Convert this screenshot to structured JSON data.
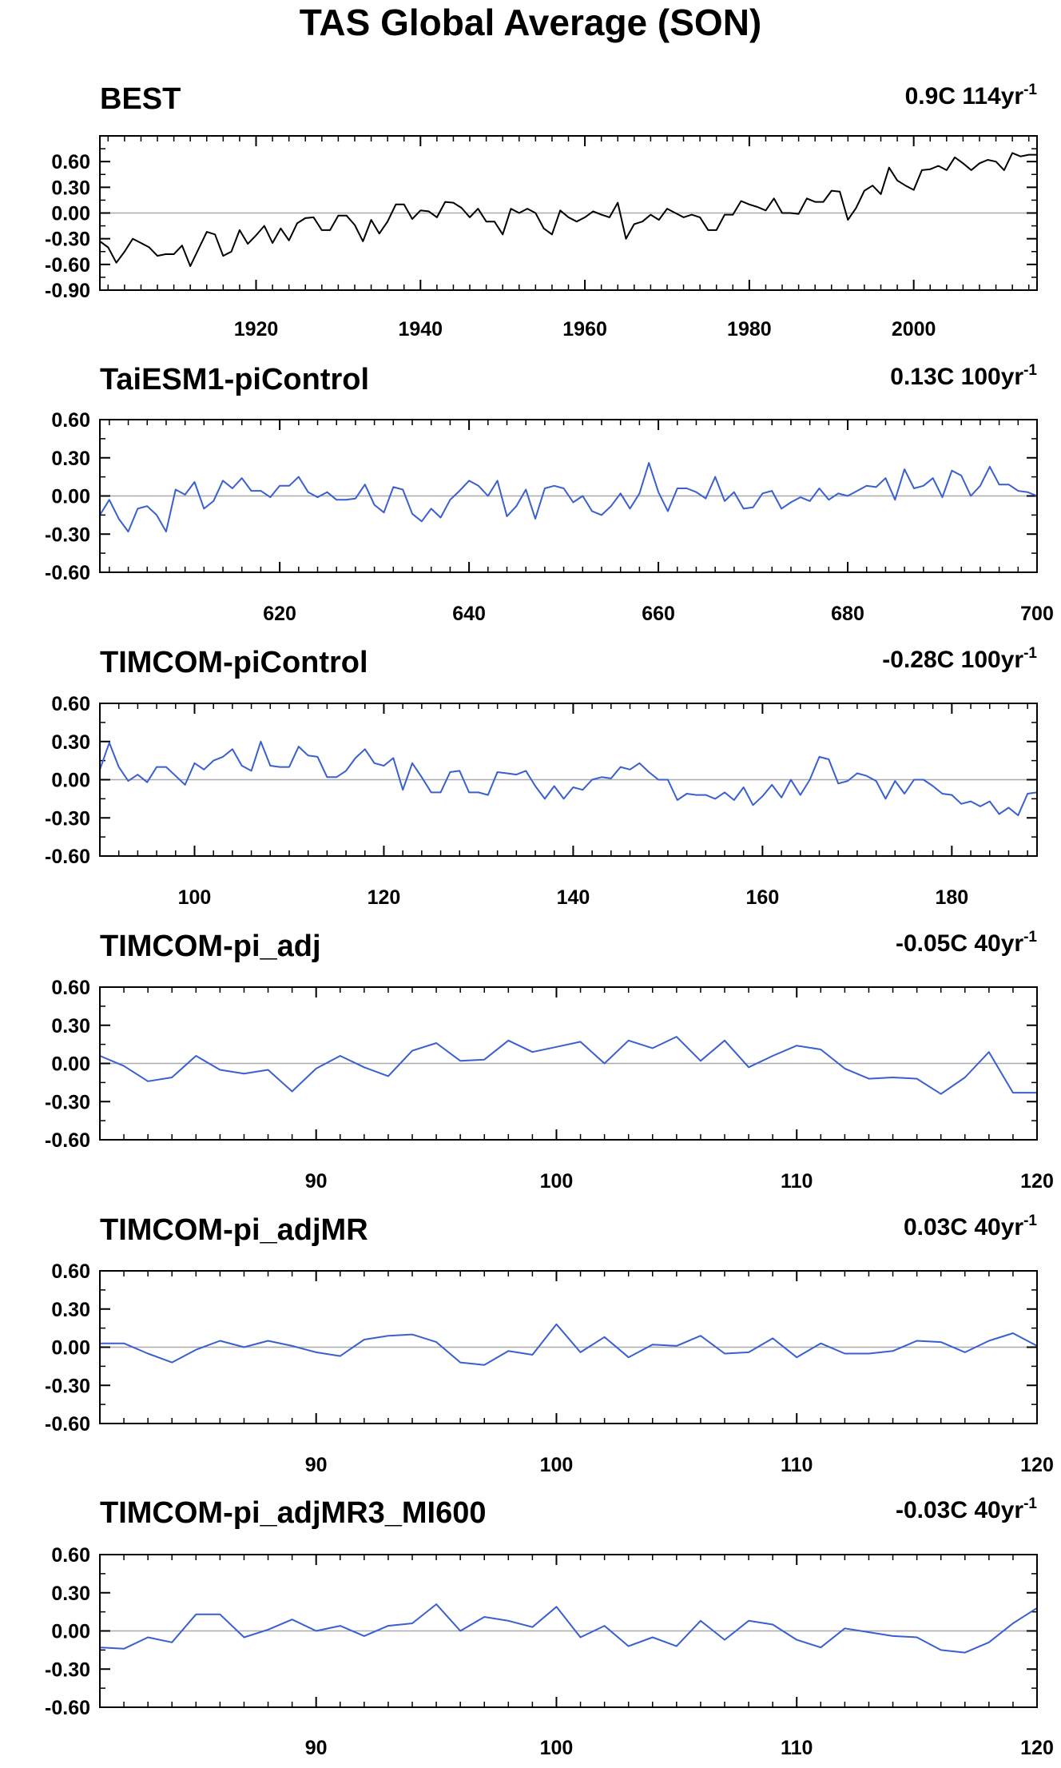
{
  "title": "TAS Global Average (SON)",
  "colors": {
    "obs": "#000000",
    "model": "#3a5fd0",
    "zero": "#aaaaaa",
    "frame": "#000000"
  },
  "chart_data": [
    {
      "type": "line",
      "title": "BEST",
      "trend_value": "0.9C 114yr",
      "trend_exponent": "-1",
      "color": "#000000",
      "xlim": [
        1901,
        2015
      ],
      "ylim": [
        -0.9,
        0.9
      ],
      "yticks": [
        "0.60",
        "0.30",
        "0.00",
        "-0.30",
        "-0.60",
        "-0.90"
      ],
      "xticks": [
        "1920",
        "1940",
        "1960",
        "1980",
        "2000"
      ],
      "x": [
        1901,
        1902,
        1903,
        1904,
        1905,
        1906,
        1907,
        1908,
        1909,
        1910,
        1911,
        1912,
        1913,
        1914,
        1915,
        1916,
        1917,
        1918,
        1919,
        1920,
        1921,
        1922,
        1923,
        1924,
        1925,
        1926,
        1927,
        1928,
        1929,
        1930,
        1931,
        1932,
        1933,
        1934,
        1935,
        1936,
        1937,
        1938,
        1939,
        1940,
        1941,
        1942,
        1943,
        1944,
        1945,
        1946,
        1947,
        1948,
        1949,
        1950,
        1951,
        1952,
        1953,
        1954,
        1955,
        1956,
        1957,
        1958,
        1959,
        1960,
        1961,
        1962,
        1963,
        1964,
        1965,
        1966,
        1967,
        1968,
        1969,
        1970,
        1971,
        1972,
        1973,
        1974,
        1975,
        1976,
        1977,
        1978,
        1979,
        1980,
        1981,
        1982,
        1983,
        1984,
        1985,
        1986,
        1987,
        1988,
        1989,
        1990,
        1991,
        1992,
        1993,
        1994,
        1995,
        1996,
        1997,
        1998,
        1999,
        2000,
        2001,
        2002,
        2003,
        2004,
        2005,
        2006,
        2007,
        2008,
        2009,
        2010,
        2011,
        2012,
        2013,
        2014,
        2015
      ],
      "values": [
        -0.33,
        -0.4,
        -0.58,
        -0.45,
        -0.3,
        -0.35,
        -0.4,
        -0.5,
        -0.48,
        -0.48,
        -0.38,
        -0.62,
        -0.42,
        -0.22,
        -0.25,
        -0.5,
        -0.45,
        -0.2,
        -0.36,
        -0.26,
        -0.15,
        -0.35,
        -0.18,
        -0.32,
        -0.12,
        -0.06,
        -0.05,
        -0.2,
        -0.2,
        -0.03,
        -0.03,
        -0.14,
        -0.33,
        -0.08,
        -0.24,
        -0.1,
        0.1,
        0.1,
        -0.07,
        0.03,
        0.02,
        -0.05,
        0.13,
        0.12,
        0.06,
        -0.05,
        0.05,
        -0.1,
        -0.1,
        -0.25,
        0.05,
        0.0,
        0.05,
        0.0,
        -0.18,
        -0.25,
        0.03,
        -0.05,
        -0.1,
        -0.05,
        0.02,
        -0.02,
        -0.05,
        0.12,
        -0.3,
        -0.13,
        -0.1,
        -0.02,
        -0.08,
        0.05,
        0.0,
        -0.05,
        -0.02,
        -0.05,
        -0.2,
        -0.2,
        -0.02,
        -0.02,
        0.14,
        0.1,
        0.07,
        0.03,
        0.17,
        0.0,
        0.0,
        -0.01,
        0.17,
        0.13,
        0.13,
        0.26,
        0.25,
        -0.08,
        0.06,
        0.26,
        0.32,
        0.22,
        0.53,
        0.38,
        0.32,
        0.27,
        0.5,
        0.51,
        0.55,
        0.5,
        0.65,
        0.58,
        0.5,
        0.58,
        0.62,
        0.6,
        0.5,
        0.7,
        0.66,
        0.68,
        0.68
      ]
    },
    {
      "type": "line",
      "title": "TaiESM1-piControl",
      "trend_value": "0.13C 100yr",
      "trend_exponent": "-1",
      "color": "#3a5fd0",
      "xlim": [
        601,
        700
      ],
      "ylim": [
        -0.6,
        0.6
      ],
      "yticks": [
        "0.60",
        "0.30",
        "0.00",
        "-0.30",
        "-0.60"
      ],
      "xticks": [
        "620",
        "640",
        "660",
        "680",
        "700"
      ],
      "x_start": 601,
      "values": [
        -0.15,
        -0.03,
        -0.18,
        -0.28,
        -0.1,
        -0.08,
        -0.15,
        -0.28,
        0.05,
        0.01,
        0.11,
        -0.1,
        -0.04,
        0.12,
        0.06,
        0.14,
        0.04,
        0.04,
        -0.01,
        0.08,
        0.08,
        0.15,
        0.03,
        -0.01,
        0.03,
        -0.03,
        -0.03,
        -0.02,
        0.09,
        -0.07,
        -0.13,
        0.07,
        0.05,
        -0.14,
        -0.2,
        -0.1,
        -0.17,
        -0.03,
        0.04,
        0.12,
        0.08,
        0.0,
        0.12,
        -0.16,
        -0.08,
        0.05,
        -0.18,
        0.06,
        0.08,
        0.06,
        -0.05,
        0.0,
        -0.12,
        -0.15,
        -0.08,
        0.02,
        -0.1,
        0.02,
        0.26,
        0.03,
        -0.12,
        0.06,
        0.06,
        0.03,
        -0.02,
        0.15,
        -0.04,
        0.03,
        -0.1,
        -0.09,
        0.02,
        0.04,
        -0.1,
        -0.05,
        -0.01,
        -0.04,
        0.06,
        -0.03,
        0.02,
        0.0,
        0.04,
        0.08,
        0.07,
        0.14,
        -0.03,
        0.21,
        0.06,
        0.08,
        0.14,
        -0.01,
        0.2,
        0.16,
        0.0,
        0.08,
        0.23,
        0.09,
        0.09,
        0.04,
        0.03,
        0.0
      ]
    },
    {
      "type": "line",
      "title": "TIMCOM-piControl",
      "trend_value": "-0.28C 100yr",
      "trend_exponent": "-1",
      "color": "#3a5fd0",
      "xlim": [
        90,
        189
      ],
      "ylim": [
        -0.6,
        0.6
      ],
      "yticks": [
        "0.60",
        "0.30",
        "0.00",
        "-0.30",
        "-0.60"
      ],
      "xticks": [
        "100",
        "120",
        "140",
        "160",
        "180"
      ],
      "x_start": 90,
      "values": [
        0.08,
        0.29,
        0.1,
        -0.01,
        0.04,
        -0.02,
        0.1,
        0.1,
        0.03,
        -0.04,
        0.13,
        0.08,
        0.15,
        0.18,
        0.24,
        0.11,
        0.07,
        0.3,
        0.11,
        0.1,
        0.1,
        0.26,
        0.19,
        0.18,
        0.02,
        0.02,
        0.07,
        0.17,
        0.24,
        0.13,
        0.11,
        0.17,
        -0.08,
        0.13,
        0.02,
        -0.1,
        -0.1,
        0.06,
        0.07,
        -0.1,
        -0.1,
        -0.12,
        0.06,
        0.05,
        0.04,
        0.07,
        -0.05,
        -0.15,
        -0.05,
        -0.15,
        -0.06,
        -0.08,
        0.0,
        0.02,
        0.01,
        0.1,
        0.08,
        0.13,
        0.06,
        0.0,
        0.0,
        -0.16,
        -0.11,
        -0.12,
        -0.12,
        -0.15,
        -0.1,
        -0.16,
        -0.06,
        -0.2,
        -0.13,
        -0.04,
        -0.14,
        0.0,
        -0.12,
        0.0,
        0.18,
        0.16,
        -0.03,
        -0.01,
        0.05,
        0.03,
        -0.01,
        -0.15,
        -0.01,
        -0.11,
        0.0,
        0.0,
        -0.05,
        -0.11,
        -0.12,
        -0.19,
        -0.17,
        -0.21,
        -0.17,
        -0.27,
        -0.22,
        -0.28,
        -0.11,
        -0.1
      ]
    },
    {
      "type": "line",
      "title": "TIMCOM-pi_adj",
      "trend_value": "-0.05C 40yr",
      "trend_exponent": "-1",
      "color": "#3a5fd0",
      "xlim": [
        81,
        120
      ],
      "ylim": [
        -0.6,
        0.6
      ],
      "yticks": [
        "0.60",
        "0.30",
        "0.00",
        "-0.30",
        "-0.60"
      ],
      "xticks": [
        "90",
        "100",
        "110",
        "120"
      ],
      "x_start": 81,
      "values": [
        0.06,
        -0.02,
        -0.14,
        -0.11,
        0.06,
        -0.05,
        -0.08,
        -0.05,
        -0.22,
        -0.04,
        0.06,
        -0.03,
        -0.1,
        0.1,
        0.16,
        0.02,
        0.03,
        0.18,
        0.09,
        0.13,
        0.17,
        0.0,
        0.18,
        0.12,
        0.21,
        0.02,
        0.18,
        -0.03,
        0.06,
        0.14,
        0.11,
        -0.04,
        -0.12,
        -0.11,
        -0.12,
        -0.24,
        -0.11,
        0.09,
        -0.23,
        -0.23
      ]
    },
    {
      "type": "line",
      "title": "TIMCOM-pi_adjMR",
      "trend_value": "0.03C 40yr",
      "trend_exponent": "-1",
      "color": "#3a5fd0",
      "xlim": [
        81,
        120
      ],
      "ylim": [
        -0.6,
        0.6
      ],
      "yticks": [
        "0.60",
        "0.30",
        "0.00",
        "-0.30",
        "-0.60"
      ],
      "xticks": [
        "90",
        "100",
        "110",
        "120"
      ],
      "x_start": 81,
      "values": [
        0.03,
        0.03,
        -0.05,
        -0.12,
        -0.02,
        0.05,
        0.0,
        0.05,
        0.01,
        -0.04,
        -0.07,
        0.06,
        0.09,
        0.1,
        0.04,
        -0.12,
        -0.14,
        -0.03,
        -0.06,
        0.18,
        -0.04,
        0.08,
        -0.08,
        0.02,
        0.01,
        0.09,
        -0.05,
        -0.04,
        0.07,
        -0.08,
        0.03,
        -0.05,
        -0.05,
        -0.03,
        0.05,
        0.04,
        -0.04,
        0.05,
        0.11,
        0.01
      ]
    },
    {
      "type": "line",
      "title": "TIMCOM-pi_adjMR3_MI600",
      "trend_value": "-0.03C 40yr",
      "trend_exponent": "-1",
      "color": "#3a5fd0",
      "xlim": [
        81,
        120
      ],
      "ylim": [
        -0.6,
        0.6
      ],
      "yticks": [
        "0.60",
        "0.30",
        "0.00",
        "-0.30",
        "-0.60"
      ],
      "xticks": [
        "90",
        "100",
        "110",
        "120"
      ],
      "x_start": 81,
      "values": [
        -0.13,
        -0.14,
        -0.05,
        -0.09,
        0.13,
        0.13,
        -0.05,
        0.01,
        0.09,
        0.0,
        0.04,
        -0.04,
        0.04,
        0.06,
        0.21,
        0.0,
        0.11,
        0.08,
        0.03,
        0.19,
        -0.05,
        0.04,
        -0.12,
        -0.05,
        -0.12,
        0.08,
        -0.07,
        0.08,
        0.05,
        -0.07,
        -0.13,
        0.02,
        -0.01,
        -0.04,
        -0.05,
        -0.15,
        -0.17,
        -0.09,
        0.06,
        0.18
      ]
    }
  ]
}
